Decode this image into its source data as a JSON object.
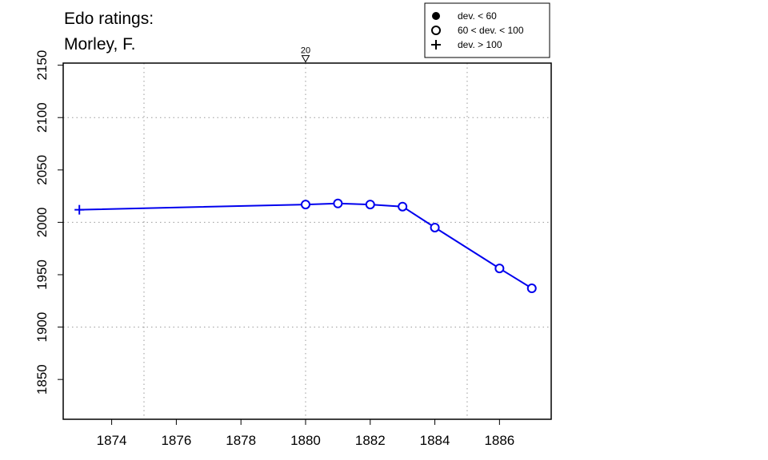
{
  "chart_data": {
    "type": "line",
    "title_lines": [
      "Edo ratings:",
      "Morley, F."
    ],
    "xlabel": "",
    "ylabel": "",
    "xlim": [
      1872.5,
      1887.6
    ],
    "ylim": [
      1812,
      2152
    ],
    "x_ticks": [
      1874,
      1876,
      1878,
      1880,
      1882,
      1884,
      1886
    ],
    "y_ticks": [
      1850,
      1900,
      1950,
      2000,
      2050,
      2100,
      2150
    ],
    "x_grid": [
      1875,
      1880,
      1885
    ],
    "y_grid": [
      1900,
      2000,
      2100
    ],
    "grid": true,
    "line_color": "#0000ee",
    "series": [
      {
        "points": [
          {
            "x": 1873,
            "y": 2012,
            "marker": "plus"
          },
          {
            "x": 1880,
            "y": 2017,
            "marker": "open-circle"
          },
          {
            "x": 1881,
            "y": 2018,
            "marker": "open-circle"
          },
          {
            "x": 1882,
            "y": 2017,
            "marker": "open-circle"
          },
          {
            "x": 1883,
            "y": 2015,
            "marker": "open-circle"
          },
          {
            "x": 1884,
            "y": 1995,
            "marker": "open-circle"
          },
          {
            "x": 1886,
            "y": 1956,
            "marker": "open-circle"
          },
          {
            "x": 1887,
            "y": 1937,
            "marker": "open-circle"
          }
        ]
      }
    ],
    "annotations": [
      {
        "x": 1880,
        "y": 2150,
        "label": "20",
        "marker": "down-triangle"
      }
    ],
    "legend": {
      "position": "top-right",
      "entries": [
        {
          "marker": "filled-circle",
          "label": "dev. < 60"
        },
        {
          "marker": "open-circle",
          "label": "60 < dev. < 100"
        },
        {
          "marker": "plus",
          "label": "dev. > 100"
        }
      ]
    }
  }
}
